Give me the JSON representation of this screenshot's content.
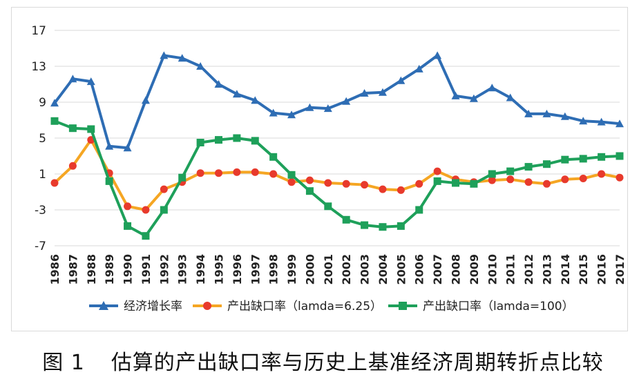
{
  "caption": {
    "prefix": "图 1",
    "text": "估算的产出缺口率与历史上基准经济周期转折点比较"
  },
  "chart_data": {
    "type": "line",
    "categories": [
      "1986",
      "1987",
      "1988",
      "1989",
      "1990",
      "1991",
      "1992",
      "1993",
      "1994",
      "1995",
      "1996",
      "1997",
      "1998",
      "1999",
      "2000",
      "2001",
      "2002",
      "2003",
      "2004",
      "2005",
      "2006",
      "2007",
      "2008",
      "2009",
      "2010",
      "2011",
      "2012",
      "2013",
      "2014",
      "2015",
      "2016",
      "2017"
    ],
    "ylim": [
      -7,
      17
    ],
    "yticks": [
      17,
      13,
      9,
      5,
      1,
      -3,
      -7
    ],
    "grid": true,
    "legend_position": "bottom",
    "series": [
      {
        "name": "经济增长率",
        "color": "#2e6db4",
        "marker": "triangle",
        "values": [
          8.9,
          11.6,
          11.3,
          4.1,
          3.9,
          9.2,
          14.2,
          13.9,
          13.0,
          11.0,
          9.9,
          9.2,
          7.8,
          7.6,
          8.4,
          8.3,
          9.1,
          10.0,
          10.1,
          11.4,
          12.7,
          14.2,
          9.7,
          9.4,
          10.6,
          9.5,
          7.7,
          7.7,
          7.4,
          6.9,
          6.8,
          6.6
        ]
      },
      {
        "name": "产出缺口率（lamda=6.25）",
        "color": "#f5a623",
        "marker": "circle",
        "markerColor": "#e83a2c",
        "values": [
          0.0,
          1.9,
          4.8,
          1.1,
          -2.6,
          -3.0,
          -0.7,
          0.1,
          1.1,
          1.1,
          1.2,
          1.2,
          1.0,
          0.1,
          0.3,
          0.0,
          -0.1,
          -0.2,
          -0.7,
          -0.8,
          -0.1,
          1.3,
          0.4,
          0.1,
          0.3,
          0.4,
          0.1,
          -0.1,
          0.4,
          0.5,
          1.0,
          0.6
        ]
      },
      {
        "name": "产出缺口率（lamda=100）",
        "color": "#1ea05a",
        "marker": "square",
        "values": [
          6.9,
          6.1,
          6.0,
          0.2,
          -4.8,
          -5.9,
          -3.0,
          0.6,
          4.5,
          4.8,
          5.0,
          4.7,
          2.9,
          0.9,
          -0.9,
          -2.6,
          -4.1,
          -4.7,
          -4.9,
          -4.8,
          -3.0,
          0.2,
          0.0,
          -0.1,
          1.0,
          1.3,
          1.8,
          2.1,
          2.6,
          2.7,
          2.9,
          3.0
        ]
      }
    ]
  }
}
